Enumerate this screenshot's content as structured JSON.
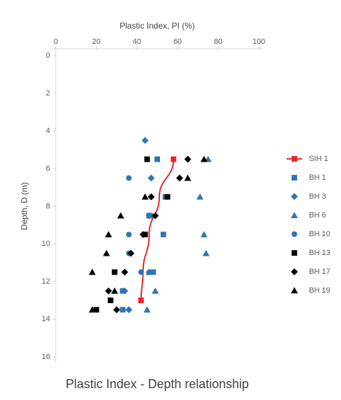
{
  "chart_data": {
    "type": "scatter",
    "title": "Plastic Index - Depth relationship",
    "x_label": "Plastic Index, PI (%)",
    "y_label": "Depth, D (m)",
    "xlim": [
      0,
      100
    ],
    "xticks": [
      0,
      20,
      40,
      60,
      80,
      100
    ],
    "x_axis_position": "top",
    "ylim": [
      0,
      16
    ],
    "yticks": [
      0,
      2,
      4,
      6,
      8,
      10,
      12,
      14,
      16
    ],
    "y_inverted": true,
    "legend": "right",
    "series": [
      {
        "name": "SIH 1",
        "color": "#e8262a",
        "marker": "square",
        "line": true,
        "markers_at": "ends",
        "x": [
          58,
          51,
          46,
          43,
          42
        ],
        "values": [
          5.5,
          7.5,
          9.5,
          11.5,
          13
        ]
      },
      {
        "name": "BH 1",
        "color": "#2e75b6",
        "marker": "square",
        "x": [
          50,
          54,
          46,
          53,
          48,
          33,
          33
        ],
        "values": [
          5.5,
          7.5,
          8.5,
          9.5,
          11.5,
          12.5,
          13.5
        ]
      },
      {
        "name": "BH 3",
        "color": "#2e75b6",
        "marker": "diamond",
        "x": [
          44,
          47,
          46,
          37,
          46,
          34,
          36
        ],
        "values": [
          4.5,
          6.5,
          8.5,
          10.5,
          11.5,
          12.5,
          13.5
        ]
      },
      {
        "name": "BH 6",
        "color": "#2e75b6",
        "marker": "triangle",
        "x": [
          75,
          71,
          73,
          74,
          46,
          49,
          45
        ],
        "values": [
          5.5,
          7.5,
          9.5,
          10.5,
          11.5,
          12.5,
          13.5
        ]
      },
      {
        "name": "BH 10",
        "color": "#2e75b6",
        "marker": "circle",
        "x": [
          36,
          47,
          36,
          36,
          42,
          33
        ],
        "values": [
          6.5,
          8.5,
          9.5,
          10.5,
          11.5,
          12.5
        ]
      },
      {
        "name": "BH 13",
        "color": "#000000",
        "marker": "square",
        "x": [
          45,
          55,
          44,
          29,
          27,
          20
        ],
        "values": [
          5.5,
          7.5,
          9.5,
          11.5,
          13,
          13.5
        ]
      },
      {
        "name": "BH 17",
        "color": "#000000",
        "marker": "diamond",
        "x": [
          65,
          61,
          47,
          49,
          43,
          37,
          34,
          26,
          30
        ],
        "values": [
          5.5,
          6.5,
          7.5,
          8.5,
          9.5,
          10.5,
          11.5,
          12.5,
          13.5
        ]
      },
      {
        "name": "BH 19",
        "color": "#000000",
        "marker": "triangle",
        "x": [
          73,
          65,
          44,
          32,
          26,
          25,
          18,
          29,
          18
        ],
        "values": [
          5.5,
          6.5,
          7.5,
          8.5,
          9.5,
          10.5,
          11.5,
          12.5,
          13.5
        ]
      }
    ]
  }
}
